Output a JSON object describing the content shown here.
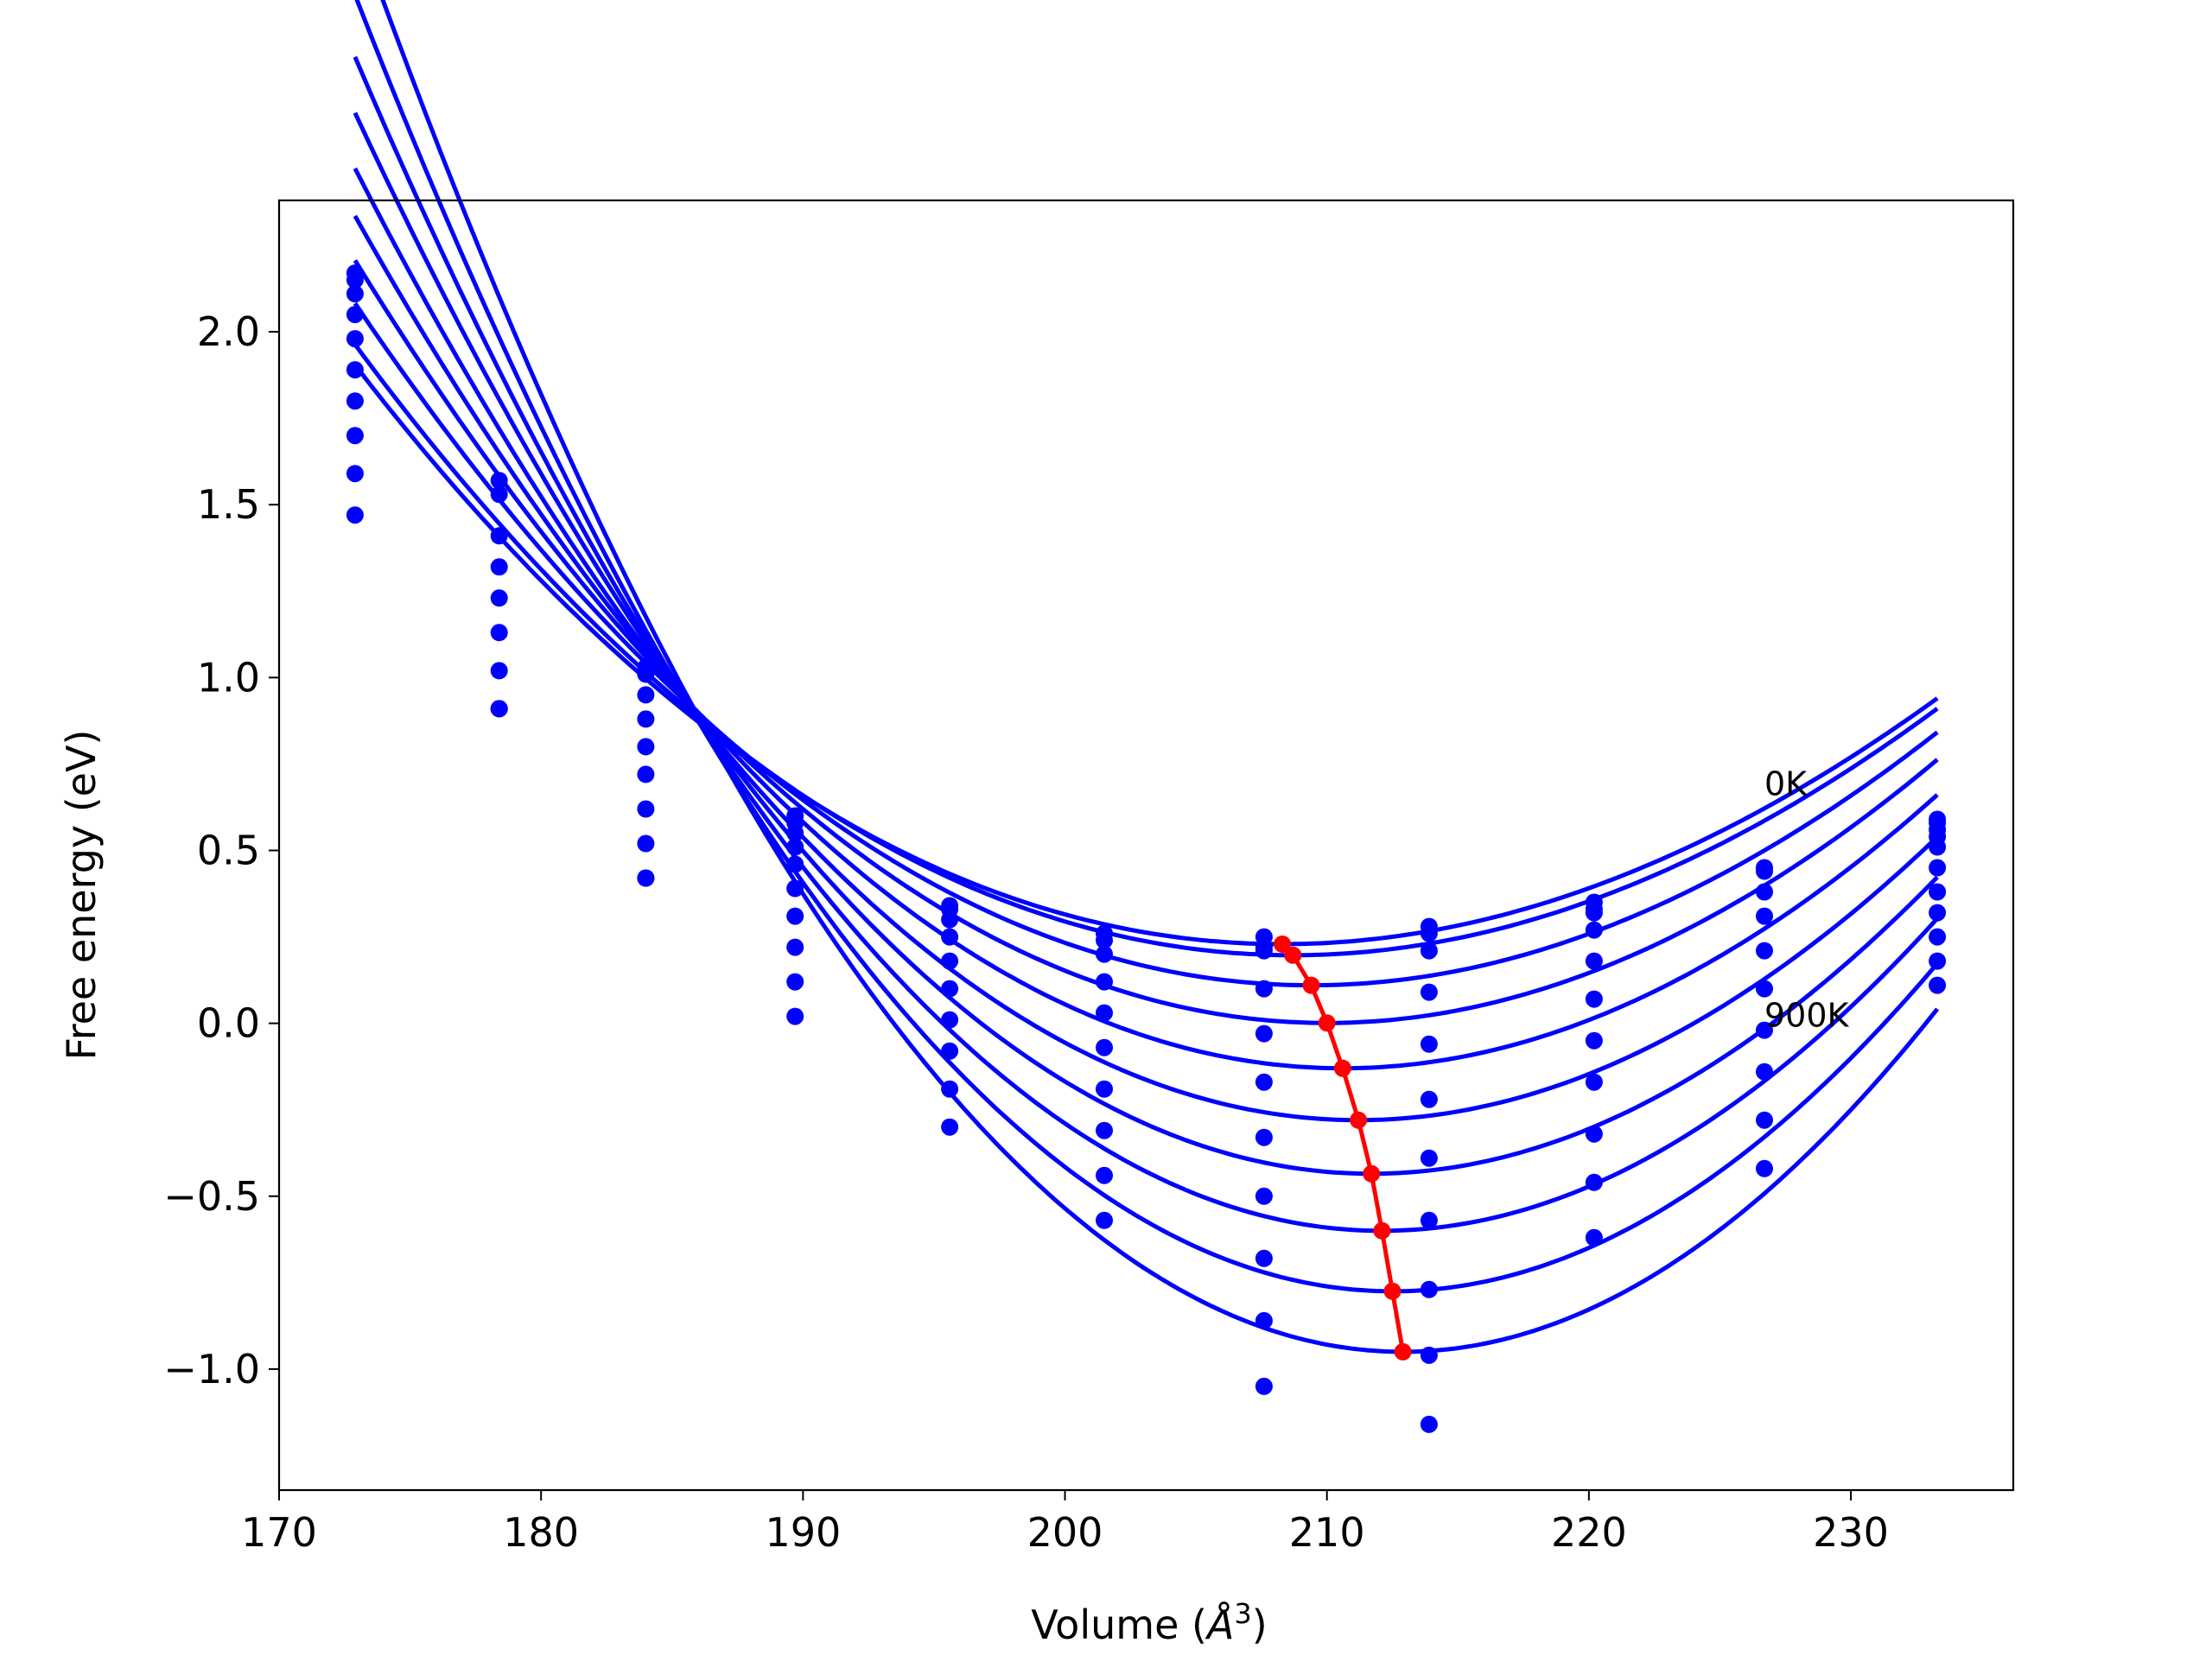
{
  "chart_data": {
    "type": "line",
    "title": "",
    "xlabel_main": "Volume (",
    "xlabel_unit": "Å",
    "xlabel_exp": "3",
    "xlabel_close": ")",
    "ylabel": "Free energy (eV)",
    "xlim": [
      170,
      236.2
    ],
    "ylim": [
      -1.35,
      2.38
    ],
    "xticks": [
      170,
      180,
      190,
      200,
      210,
      220,
      230
    ],
    "yticks": [
      -1.0,
      -0.5,
      0.0,
      0.5,
      1.0,
      1.5,
      2.0
    ],
    "ytick_labels": [
      "−1.0",
      "−0.5",
      "0.0",
      "0.5",
      "1.0",
      "1.5",
      "2.0"
    ],
    "annotations": [
      {
        "text": "0K",
        "x": 226.7,
        "y": 0.66
      },
      {
        "text": "900K",
        "x": 226.7,
        "y": -0.01
      }
    ],
    "colors": {
      "curves": "#0000ff",
      "points": "#0000ff",
      "minima": "#ff0000"
    },
    "volumes": [
      172.9,
      178.4,
      184.0,
      189.7,
      195.6,
      201.5,
      207.6,
      213.9,
      220.2,
      226.7,
      233.3
    ],
    "series": [
      {
        "values": [
          2.17,
          1.57,
          1.03,
          0.6,
          0.34,
          0.26,
          0.25,
          0.28,
          0.35,
          0.45,
          0.59
        ],
        "fit": {
          "vmin": 208.3,
          "fmin": 0.229,
          "k": 0.00122,
          "c": 3.3e-06
        }
      },
      {
        "values": [
          2.15,
          1.53,
          1.01,
          0.58,
          0.33,
          0.24,
          0.22,
          0.26,
          0.33,
          0.44,
          0.58
        ],
        "fit": {
          "vmin": 208.7,
          "fmin": 0.197,
          "k": 0.00126,
          "c": 3.3e-06
        }
      },
      {
        "values": [
          2.11,
          1.41,
          0.95,
          0.55,
          0.3,
          0.2,
          0.21,
          0.21,
          0.32,
          0.38,
          0.56
        ],
        "fit": {
          "vmin": 209.4,
          "fmin": 0.11,
          "k": 0.00136,
          "c": 3.3e-06
        }
      },
      {
        "values": [
          2.05,
          1.32,
          0.88,
          0.51,
          0.25,
          0.12,
          0.1,
          0.09,
          0.27,
          0.31,
          0.54
        ],
        "fit": {
          "vmin": 210.0,
          "fmin": 0.001,
          "k": 0.00148,
          "c": 3.3e-06
        }
      },
      {
        "values": [
          1.98,
          1.23,
          0.8,
          0.46,
          0.18,
          0.03,
          -0.03,
          -0.06,
          0.18,
          0.21,
          0.51
        ],
        "fit": {
          "vmin": 210.6,
          "fmin": -0.13,
          "k": 0.00161,
          "c": 3.3e-06
        }
      },
      {
        "values": [
          1.89,
          1.13,
          0.72,
          0.39,
          0.1,
          -0.07,
          -0.17,
          -0.22,
          0.07,
          0.1,
          0.45
        ],
        "fit": {
          "vmin": 211.2,
          "fmin": -0.28,
          "k": 0.00175,
          "c": 3.3e-06
        }
      },
      {
        "values": [
          1.8,
          1.02,
          0.62,
          0.31,
          0.01,
          -0.19,
          -0.33,
          -0.39,
          -0.05,
          -0.02,
          0.38
        ],
        "fit": {
          "vmin": 211.7,
          "fmin": -0.435,
          "k": 0.00191,
          "c": 3.3e-06
        }
      },
      {
        "values": [
          1.7,
          0.91,
          0.52,
          0.22,
          -0.08,
          -0.31,
          -0.5,
          -0.57,
          -0.17,
          -0.14,
          0.32
        ],
        "fit": {
          "vmin": 212.1,
          "fmin": -0.6,
          "k": 0.00208,
          "c": 3.3e-06
        }
      },
      {
        "values": [
          1.59,
          0.91,
          0.42,
          0.12,
          -0.19,
          -0.44,
          -0.68,
          -0.77,
          -0.32,
          -0.28,
          0.25
        ],
        "fit": {
          "vmin": 212.5,
          "fmin": -0.775,
          "k": 0.00226,
          "c": 3.3e-06
        }
      },
      {
        "values": [
          1.47,
          0.91,
          0.42,
          0.02,
          -0.3,
          -0.57,
          -0.86,
          -0.96,
          -0.46,
          -0.42,
          0.18
        ],
        "fit": {
          "vmin": 212.9,
          "fmin": -0.95,
          "k": 0.00245,
          "c": 3.3e-06
        }
      },
      {
        "values": [
          null,
          null,
          null,
          null,
          null,
          null,
          -1.05,
          -1.16,
          -0.62,
          null,
          0.11
        ]
      }
    ],
    "minima": {
      "x": [
        208.3,
        208.7,
        209.4,
        210.0,
        210.6,
        211.2,
        211.7,
        212.1,
        212.5,
        212.9
      ],
      "y": [
        0.229,
        0.197,
        0.11,
        0.001,
        -0.13,
        -0.28,
        -0.435,
        -0.6,
        -0.775,
        -0.95
      ]
    }
  }
}
